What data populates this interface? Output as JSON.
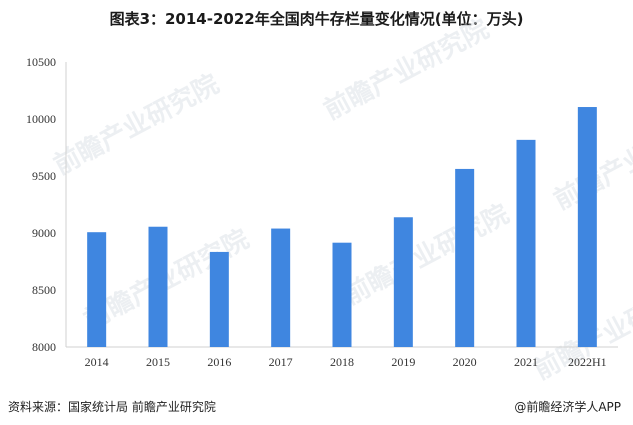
{
  "page": {
    "title": "图表3：2014-2022年全国肉牛存栏量变化情况(单位：万头)",
    "source": "资料来源：国家统计局 前瞻产业研究院",
    "brand": "@前瞻经济学人APP",
    "watermark": "前瞻产业研究院"
  },
  "chart_data": {
    "type": "bar",
    "title": "图表3：2014-2022年全国肉牛存栏量变化情况(单位：万头)",
    "categories": [
      "2014",
      "2015",
      "2016",
      "2017",
      "2018",
      "2019",
      "2020",
      "2021",
      "2022H1"
    ],
    "values": [
      9007,
      9055,
      8834,
      9039,
      8915,
      9138,
      9562,
      9817,
      10105
    ],
    "ylim": [
      8000,
      10500
    ],
    "yticks": [
      8000,
      8500,
      9000,
      9500,
      10000,
      10500
    ],
    "grid": false,
    "bar_color": "#3f86e0",
    "axis_color": "#d0d0d0"
  }
}
